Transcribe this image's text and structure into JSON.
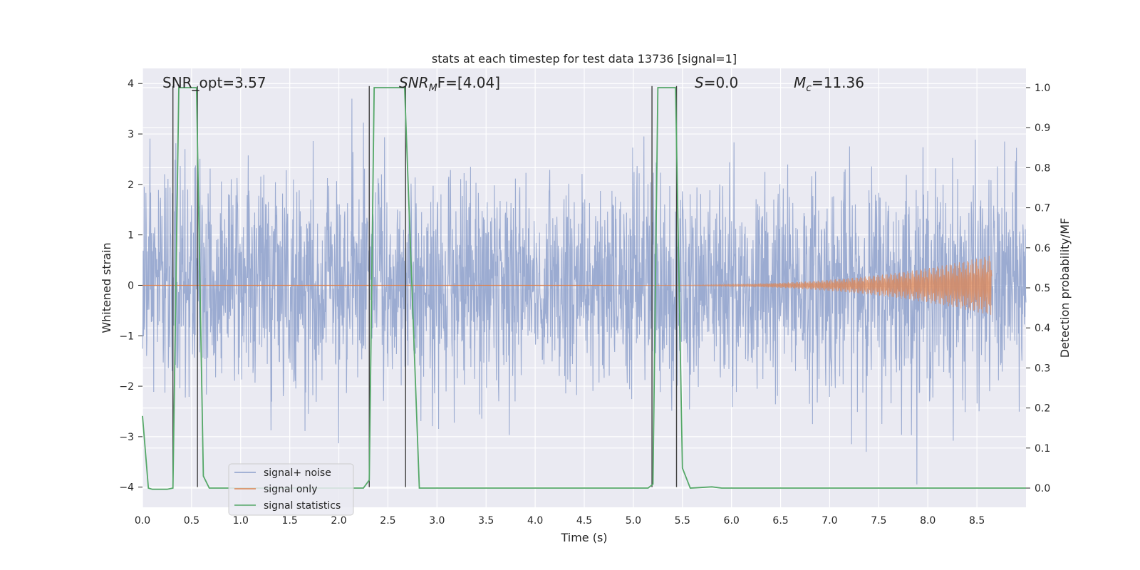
{
  "chart_data": {
    "type": "line",
    "title": "stats at each timestep for test data 13736 [signal=1]",
    "xlabel": "Time (s)",
    "ylabel": "Whitened strain",
    "y2label": "Detection probability/MF",
    "xlim": [
      0.0,
      9.0
    ],
    "ylim": [
      -4.4,
      4.3
    ],
    "y2lim": [
      -0.048,
      1.048
    ],
    "xticks": [
      "0.0",
      "0.5",
      "1.0",
      "1.5",
      "2.0",
      "2.5",
      "3.0",
      "3.5",
      "4.0",
      "4.5",
      "5.0",
      "5.5",
      "6.0",
      "6.5",
      "7.0",
      "7.5",
      "8.0",
      "8.5"
    ],
    "yticks": [
      "−4",
      "−3",
      "−2",
      "−1",
      "0",
      "1",
      "2",
      "3",
      "4"
    ],
    "y2ticks": [
      "0.0",
      "0.1",
      "0.2",
      "0.3",
      "0.4",
      "0.5",
      "0.6",
      "0.7",
      "0.8",
      "0.9",
      "1.0"
    ],
    "grid": true,
    "legend_position": "lower-left",
    "annotations": {
      "snr_opt": "SNR_opt=3.57",
      "snr_mf_name": "SNR",
      "snr_mf_sub": "M",
      "snr_mf_rest": "F=[4.04]",
      "s_name": "S",
      "s_rest": "=0.0",
      "mc_name": "M",
      "mc_sub": "c",
      "mc_rest": "=11.36"
    },
    "series": [
      {
        "name": "signal+ noise",
        "color": "#8da0cb",
        "axis": "left",
        "style": "dense noise, typical amplitude about ±1.5, peaks to ±4"
      },
      {
        "name": "signal only",
        "color": "#dd8452",
        "axis": "left",
        "style": "chirp, amplitude grows from 0 near 4.8 s to about ±0.6 at 8.65 s, ends at 8.65 s"
      },
      {
        "name": "signal statistics",
        "color": "#55a868",
        "axis": "right",
        "x": [
          0.0,
          0.06,
          0.1,
          0.25,
          0.31,
          0.37,
          0.55,
          0.62,
          0.68,
          2.25,
          2.31,
          2.36,
          2.67,
          2.82,
          2.9,
          5.15,
          5.2,
          5.25,
          5.43,
          5.5,
          5.58,
          5.8,
          5.9,
          6.2,
          9.0
        ],
        "values": [
          0.18,
          0.0,
          -0.003,
          -0.003,
          0.0,
          1.0,
          1.0,
          0.03,
          0.0,
          0.0,
          0.02,
          1.0,
          1.0,
          0.0,
          0.0,
          0.0,
          0.01,
          1.0,
          1.0,
          0.05,
          0.0,
          0.003,
          0.0,
          0.0,
          0.0
        ]
      }
    ],
    "vertical_markers": {
      "color": "#404040",
      "x": [
        0.31,
        0.56,
        2.31,
        2.68,
        5.19,
        5.44
      ],
      "top": 3.95,
      "bottom": -4.0
    }
  }
}
